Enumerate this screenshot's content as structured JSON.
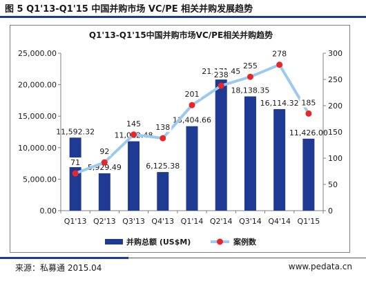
{
  "figure": {
    "title": "图 5 Q1'13-Q1'15 中国并购市场 VC/PE 相关并购发展趋势",
    "source": "来源：私募通 2015.04",
    "website": "www.pedata.cn"
  },
  "colors": {
    "bar": "#1f3a93",
    "line": "#9cc9f0",
    "marker": "#e8262a",
    "accent": "#1f3a93"
  },
  "chart_data": {
    "type": "bar+line",
    "title": "Q1'13-Q1'15中国并购市场VC/PE相关并购趋势",
    "categories": [
      "Q1'13",
      "Q2'13",
      "Q3'13",
      "Q4'13",
      "Q1'14",
      "Q2'14",
      "Q3'14",
      "Q4'14",
      "Q1'15"
    ],
    "series": [
      {
        "name": "并购总额 (US$M)",
        "type": "bar",
        "axis": "left",
        "values": [
          11592.32,
          5929.49,
          11012.48,
          6125.38,
          13404.66,
          21171.45,
          18138.35,
          16114.32,
          11426.0
        ],
        "labels": [
          "11,592.32",
          "5,929.49",
          "11,012.48",
          "6,125.38",
          "13,404.66",
          "21,171.45",
          "18,138.35",
          "16,114.32",
          "11,426.00"
        ]
      },
      {
        "name": "案例数",
        "type": "line",
        "axis": "right",
        "values": [
          71,
          92,
          145,
          138,
          201,
          238,
          255,
          278,
          185
        ],
        "labels": [
          "71",
          "92",
          "145",
          "138",
          "201",
          "238",
          "255",
          "278",
          "185"
        ]
      }
    ],
    "y_left": {
      "min": 0,
      "max": 25000,
      "step": 5000,
      "ticks": [
        "0.00",
        "5,000.00",
        "10,000.00",
        "15,000.00",
        "20,000.00",
        "25,000.00"
      ]
    },
    "y_right": {
      "min": 0,
      "max": 300,
      "step": 50,
      "ticks": [
        "0",
        "50",
        "100",
        "150",
        "200",
        "250",
        "300"
      ]
    },
    "grid": false,
    "legend": "bottom"
  }
}
